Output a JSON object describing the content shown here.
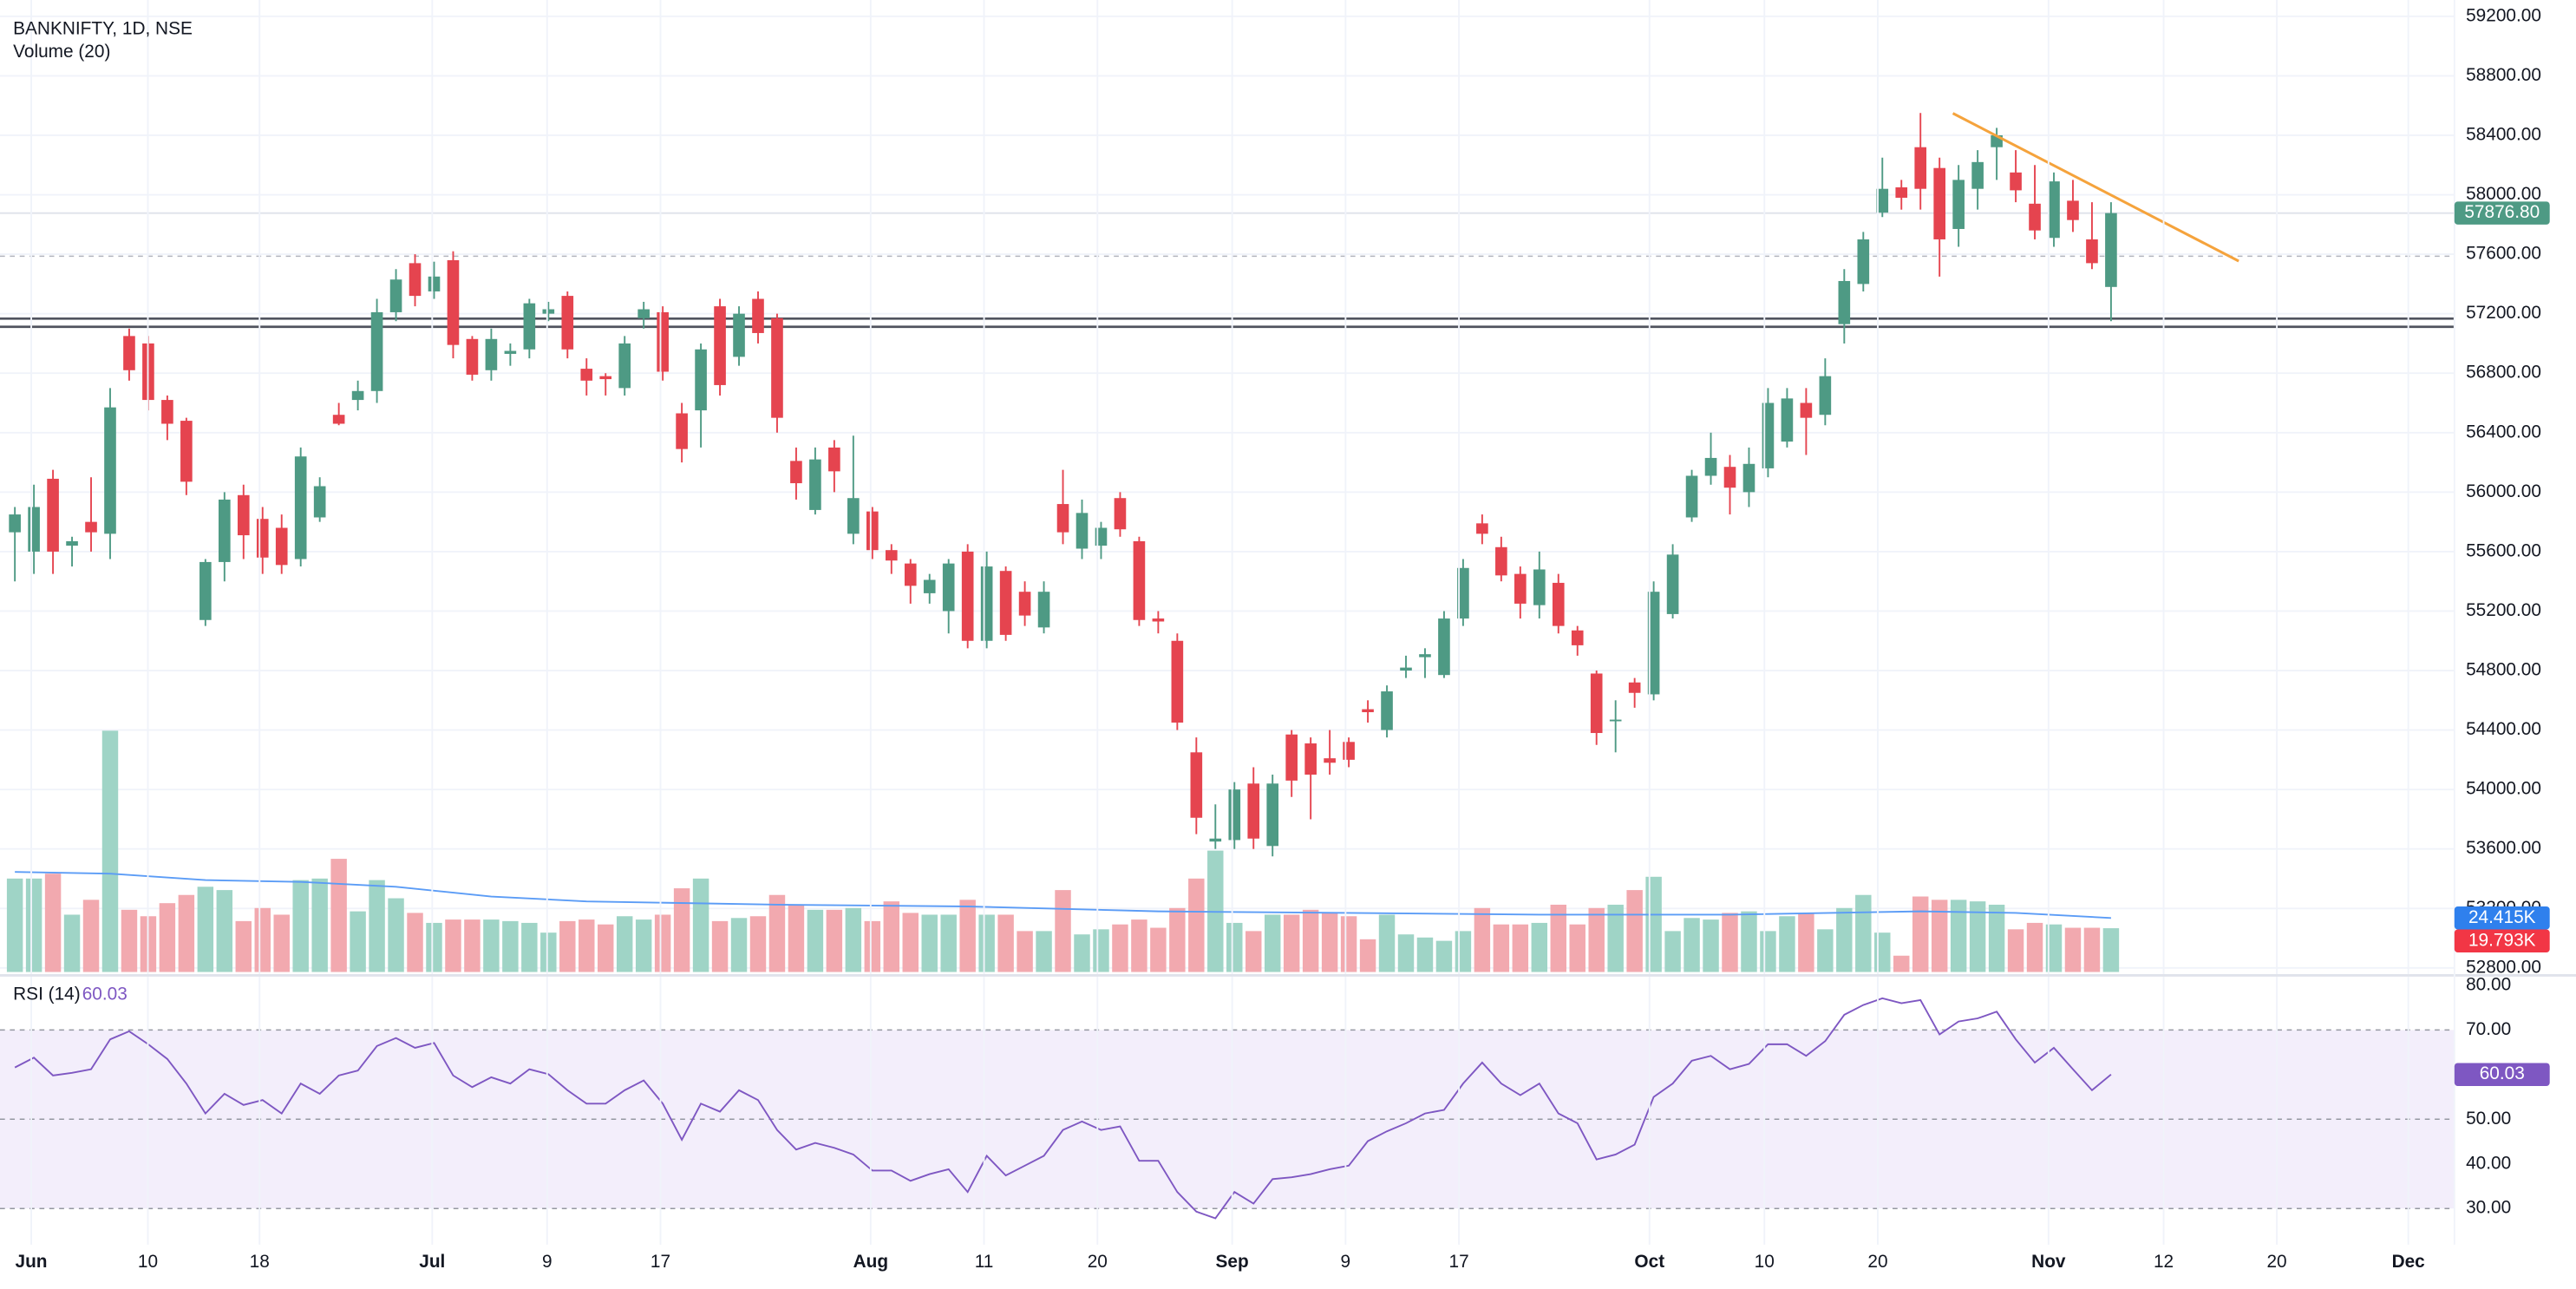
{
  "chart_data": [
    {
      "type": "candlestick",
      "title": "BANKNIFTY, 1D, NSE",
      "open": [
        55730,
        55600,
        56090,
        55640,
        55800,
        55720,
        57050,
        57000,
        56620,
        56480,
        55140,
        55530,
        55980,
        55820,
        55760,
        55550,
        55830,
        56520,
        56620,
        56680,
        57210,
        57540,
        57350,
        57560,
        57030,
        56820,
        56930,
        56960,
        57200,
        57320,
        56830,
        56780,
        56700,
        57170,
        57210,
        56530,
        56550,
        57250,
        56910,
        57300,
        57170,
        56210,
        55880,
        56300,
        55720,
        55870,
        55610,
        55520,
        55320,
        55200,
        55600,
        55000,
        55470,
        55330,
        55090,
        55920,
        55620,
        55640,
        55960,
        55670,
        55150,
        55000,
        54250,
        53650,
        53660,
        54040,
        53620,
        54370,
        54310,
        54210,
        54320,
        54540,
        54400,
        54800,
        54890,
        54770,
        55150,
        55790,
        55630,
        55450,
        55240,
        55390,
        55070,
        54780,
        54460,
        54720,
        54640,
        55180,
        55830,
        56110,
        56170,
        56000,
        56160,
        56340,
        56600,
        56520,
        57130,
        57400,
        57880,
        58050,
        58320,
        58180,
        57770,
        58040,
        58320,
        58150,
        57940,
        57710,
        57960,
        57700,
        57380
      ],
      "high": [
        55900,
        56050,
        56150,
        55700,
        56100,
        56700,
        57100,
        57050,
        56650,
        56500,
        55550,
        56000,
        56050,
        55900,
        55850,
        56300,
        56100,
        56600,
        56750,
        57300,
        57500,
        57600,
        57550,
        57620,
        57050,
        57100,
        57000,
        57300,
        57280,
        57350,
        56900,
        56800,
        57050,
        57280,
        57250,
        56600,
        57000,
        57300,
        57250,
        57350,
        57200,
        56300,
        56300,
        56350,
        56380,
        55900,
        55650,
        55550,
        55450,
        55550,
        55650,
        55600,
        55500,
        55400,
        55400,
        56150,
        55950,
        55800,
        56000,
        55700,
        55200,
        55050,
        54350,
        53900,
        54050,
        54150,
        54100,
        54400,
        54350,
        54400,
        54350,
        54600,
        54700,
        54900,
        54950,
        55200,
        55550,
        55850,
        55700,
        55500,
        55600,
        55450,
        55100,
        54800,
        54600,
        54750,
        55400,
        55650,
        56150,
        56400,
        56250,
        56300,
        56700,
        56700,
        56700,
        56900,
        57500,
        57750,
        58250,
        58100,
        58550,
        58250,
        58200,
        58300,
        58450,
        58300,
        58200,
        58150,
        58100,
        57950,
        57950
      ],
      "low": [
        55400,
        55450,
        55450,
        55500,
        55600,
        55550,
        56750,
        56550,
        56350,
        55980,
        55100,
        55400,
        55550,
        55450,
        55450,
        55500,
        55800,
        56450,
        56550,
        56600,
        57150,
        57250,
        57300,
        56900,
        56750,
        56750,
        56850,
        56900,
        57150,
        56900,
        56650,
        56650,
        56650,
        57100,
        56750,
        56200,
        56300,
        56650,
        56850,
        57000,
        56400,
        55950,
        55850,
        56000,
        55650,
        55550,
        55450,
        55250,
        55250,
        55050,
        54950,
        54950,
        55000,
        55100,
        55050,
        55650,
        55550,
        55550,
        55700,
        55100,
        55050,
        54400,
        53700,
        53600,
        53600,
        53600,
        53550,
        53950,
        53800,
        54100,
        54150,
        54450,
        54350,
        54750,
        54750,
        54750,
        55100,
        55650,
        55400,
        55150,
        55150,
        55050,
        54900,
        54300,
        54250,
        54550,
        54600,
        55150,
        55800,
        56050,
        55850,
        55900,
        56100,
        56300,
        56250,
        56450,
        57000,
        57350,
        57850,
        57900,
        57900,
        57450,
        57650,
        57900,
        58100,
        57950,
        57700,
        57650,
        57750,
        57500,
        57150
      ],
      "close": [
        55850,
        55900,
        55600,
        55670,
        55730,
        56570,
        56820,
        56620,
        56460,
        56070,
        55530,
        55950,
        55710,
        55560,
        55510,
        56240,
        56040,
        56460,
        56680,
        57210,
        57430,
        57320,
        57450,
        56990,
        56790,
        57030,
        56950,
        57270,
        57230,
        56960,
        56750,
        56760,
        57000,
        57230,
        56810,
        56290,
        56960,
        56720,
        57200,
        57070,
        56500,
        56060,
        56220,
        56140,
        55960,
        55610,
        55540,
        55370,
        55410,
        55520,
        55000,
        55500,
        55040,
        55170,
        55330,
        55730,
        55860,
        55760,
        55750,
        55140,
        55130,
        54450,
        53810,
        53670,
        54000,
        53670,
        54040,
        54060,
        54100,
        54180,
        54200,
        54520,
        54660,
        54820,
        54910,
        55150,
        55490,
        55720,
        55440,
        55250,
        55480,
        55100,
        54970,
        54380,
        54470,
        54650,
        55330,
        55580,
        56110,
        56230,
        56030,
        56190,
        56600,
        56630,
        56500,
        56780,
        57420,
        57700,
        58040,
        57980,
        58040,
        57700,
        58100,
        58220,
        58400,
        58030,
        57760,
        58090,
        57830,
        57540,
        57876.8
      ],
      "last_label": "57876.80",
      "up_color": "#4e9a84",
      "down_color": "#e5444f",
      "ylim": [
        52772,
        59310
      ],
      "yticks": [
        {
          "value": 52800,
          "label": "52800.00"
        },
        {
          "value": 53200,
          "label": "53200.00"
        },
        {
          "value": 53600,
          "label": "53600.00"
        },
        {
          "value": 54000,
          "label": "54000.00"
        },
        {
          "value": 54400,
          "label": "54400.00"
        },
        {
          "value": 54800,
          "label": "54800.00"
        },
        {
          "value": 55200,
          "label": "55200.00"
        },
        {
          "value": 55600,
          "label": "55600.00"
        },
        {
          "value": 56000,
          "label": "56000.00"
        },
        {
          "value": 56400,
          "label": "56400.00"
        },
        {
          "value": 56800,
          "label": "56800.00"
        },
        {
          "value": 57200,
          "label": "57200.00"
        },
        {
          "value": 57600,
          "label": "57600.00"
        },
        {
          "value": 58000,
          "label": "58000.00"
        },
        {
          "value": 58400,
          "label": "58400.00"
        },
        {
          "value": 58800,
          "label": "58800.00"
        },
        {
          "value": 59200,
          "label": "59200.00"
        }
      ],
      "xlim": [
        -0.78,
        128.02
      ],
      "xticks": [
        {
          "value": 0.86,
          "label": "Jun"
        },
        {
          "value": 6.98,
          "label": "10"
        },
        {
          "value": 12.84,
          "label": "18"
        },
        {
          "value": 21.9,
          "label": "Jul"
        },
        {
          "value": 27.93,
          "label": "9"
        },
        {
          "value": 33.88,
          "label": "17"
        },
        {
          "value": 44.91,
          "label": "Aug"
        },
        {
          "value": 50.86,
          "label": "11"
        },
        {
          "value": 56.81,
          "label": "20"
        },
        {
          "value": 63.88,
          "label": "Sep"
        },
        {
          "value": 69.83,
          "label": "9"
        },
        {
          "value": 75.78,
          "label": "17"
        },
        {
          "value": 85.78,
          "label": "Oct"
        },
        {
          "value": 91.81,
          "label": "10"
        },
        {
          "value": 97.76,
          "label": "20"
        },
        {
          "value": 106.72,
          "label": "Nov"
        },
        {
          "value": 112.76,
          "label": "12"
        },
        {
          "value": 118.7,
          "label": "20"
        },
        {
          "value": 125.6,
          "label": "Dec"
        }
      ],
      "grid": true,
      "hlines": [
        57167,
        57112
      ],
      "hline_color": "#50535e",
      "ref_line": 57587,
      "trendline": {
        "x": [
          101.7,
          116.7
        ],
        "y": [
          58548,
          57554
        ],
        "color": "#f5a33c"
      }
    },
    {
      "type": "volume",
      "title": "Volume (20)",
      "values": [
        42200,
        42200,
        44400,
        25900,
        32600,
        108900,
        28100,
        25200,
        31100,
        34800,
        38500,
        37000,
        23000,
        28900,
        25900,
        41500,
        42200,
        51100,
        27400,
        41500,
        33300,
        26700,
        22200,
        23700,
        23700,
        23700,
        23000,
        22200,
        17800,
        23000,
        23700,
        21500,
        25200,
        23700,
        25900,
        37800,
        42200,
        23000,
        24400,
        25200,
        34800,
        30400,
        28100,
        28100,
        28900,
        23000,
        31900,
        26700,
        25900,
        25900,
        32600,
        25900,
        25900,
        18500,
        18500,
        37000,
        17000,
        19300,
        21500,
        23700,
        20000,
        28900,
        42200,
        54800,
        22200,
        18500,
        25900,
        25900,
        28100,
        26700,
        25200,
        14800,
        25900,
        17000,
        15600,
        14100,
        18500,
        28900,
        21500,
        21500,
        22200,
        30400,
        21500,
        28900,
        30400,
        37000,
        43000,
        18500,
        24400,
        23700,
        26700,
        27400,
        18500,
        25200,
        26700,
        19300,
        28900,
        34800,
        17800,
        7400,
        34100,
        32600,
        32600,
        31900,
        30400,
        19300,
        22200,
        21500,
        20000,
        20000,
        19793
      ],
      "last_label": "19.793K",
      "up_color": "#9fd4c6",
      "down_color": "#f2a9af",
      "ma": {
        "x": [
          0,
          5,
          10,
          15,
          20,
          25,
          30,
          40,
          50,
          60,
          70,
          80,
          90,
          100,
          105,
          110
        ],
        "values": [
          45200,
          44400,
          41500,
          40700,
          38500,
          34100,
          31900,
          30400,
          29600,
          27400,
          26700,
          25900,
          25900,
          27400,
          26700,
          24415
        ],
        "color": "#5b9cf6",
        "last_label": "24.415K"
      }
    },
    {
      "type": "line",
      "title": "RSI (14)",
      "values": [
        61.6,
        63.8,
        59.8,
        60.4,
        61.2,
        67.9,
        69.7,
        66.8,
        63.5,
        58,
        51.3,
        55.7,
        53.2,
        54.3,
        51.3,
        58,
        55.7,
        59.8,
        60.9,
        66.4,
        68.2,
        66,
        67.1,
        59.8,
        57.2,
        59.4,
        58,
        61.2,
        60.1,
        56.5,
        53.5,
        53.5,
        56.5,
        58.7,
        53.5,
        45.4,
        53.5,
        51.7,
        56.5,
        54.3,
        47.6,
        43.2,
        44.7,
        43.6,
        42.1,
        38.5,
        38.5,
        36.2,
        37.7,
        38.8,
        33.7,
        41.8,
        37.4,
        39.6,
        41.8,
        47.6,
        49.5,
        47.6,
        48.4,
        40.7,
        40.7,
        33.7,
        29.3,
        27.8,
        33.7,
        31.1,
        36.6,
        37,
        37.7,
        38.8,
        39.6,
        45.1,
        47.3,
        49.1,
        51.3,
        52.1,
        58,
        62.7,
        58,
        55.4,
        58,
        51.3,
        49.1,
        41,
        42.1,
        44.3,
        55,
        58,
        63.1,
        64.2,
        61.2,
        62.4,
        66.8,
        66.8,
        64.2,
        67.5,
        73.4,
        75.6,
        77.1,
        76,
        76.7,
        69,
        71.9,
        72.6,
        74.1,
        67.9,
        62.7,
        66,
        61.2,
        56.5,
        60.03
      ],
      "color": "#7e57c2",
      "ylim": [
        21.9,
        81.5
      ],
      "yticks": [
        {
          "value": 30,
          "label": "30.00"
        },
        {
          "value": 40,
          "label": "40.00"
        },
        {
          "value": 50,
          "label": "50.00"
        },
        {
          "value": 70,
          "label": "70.00"
        },
        {
          "value": 80,
          "label": "80.00"
        }
      ],
      "levels": [
        70,
        50,
        30
      ],
      "band_color": "#f3eefb"
    }
  ]
}
